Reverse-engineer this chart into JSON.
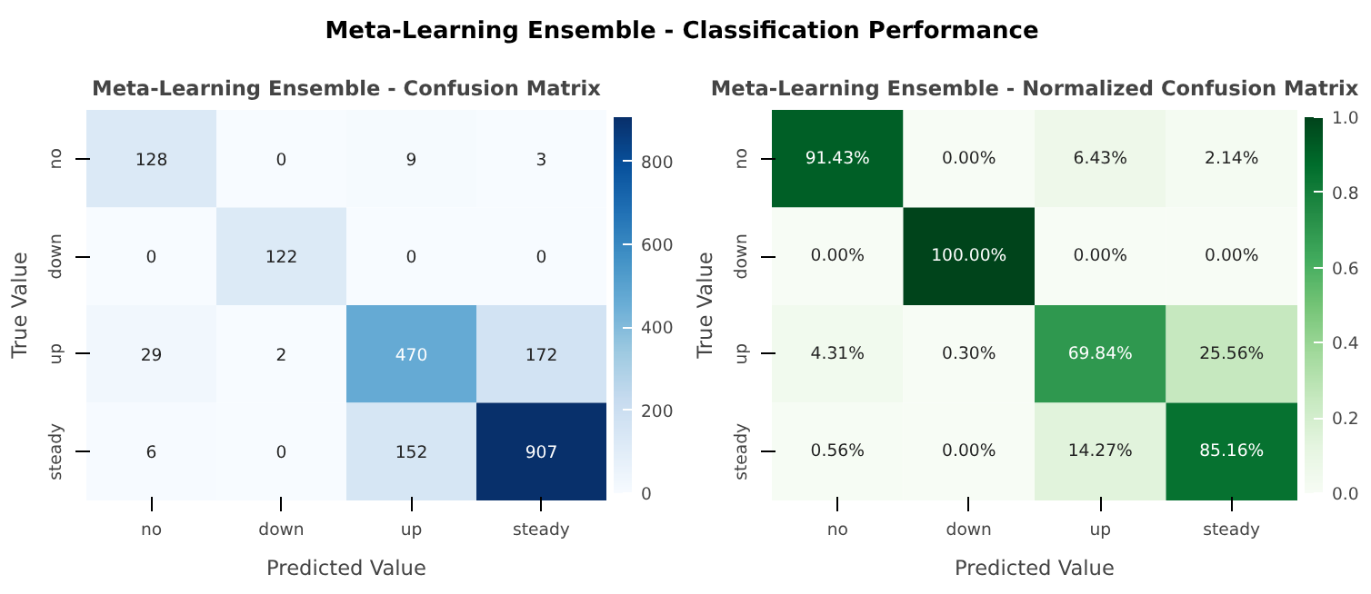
{
  "chart_data": [
    {
      "type": "heatmap",
      "title": "Meta-Learning Ensemble - Confusion Matrix",
      "annotations": [
        "Meta-Learning Ensemble - Classification Performance"
      ],
      "xlabel": "Predicted Value",
      "ylabel": "True Value",
      "categories": [
        "no",
        "down",
        "up",
        "steady"
      ],
      "y_categories": [
        "no",
        "down",
        "up",
        "steady"
      ],
      "cells": [
        [
          128,
          0,
          9,
          3
        ],
        [
          0,
          122,
          0,
          0
        ],
        [
          29,
          2,
          470,
          172
        ],
        [
          6,
          0,
          152,
          907
        ]
      ],
      "clim": [
        0,
        907
      ],
      "cticks": [
        0,
        200,
        400,
        600,
        800
      ],
      "data_labels": true
    },
    {
      "type": "heatmap",
      "title": "Meta-Learning Ensemble - Normalized Confusion Matrix",
      "xlabel": "Predicted Value",
      "ylabel": "True Value",
      "categories": [
        "no",
        "down",
        "up",
        "steady"
      ],
      "y_categories": [
        "no",
        "down",
        "up",
        "steady"
      ],
      "cells": [
        [
          0.9143,
          0.0,
          0.0643,
          0.0214
        ],
        [
          0.0,
          1.0,
          0.0,
          0.0
        ],
        [
          0.0431,
          0.003,
          0.6984,
          0.2556
        ],
        [
          0.0056,
          0.0,
          0.1427,
          0.8516
        ]
      ],
      "cell_labels": [
        [
          "91.43%",
          "0.00%",
          "6.43%",
          "2.14%"
        ],
        [
          "0.00%",
          "100.00%",
          "0.00%",
          "0.00%"
        ],
        [
          "4.31%",
          "0.30%",
          "69.84%",
          "25.56%"
        ],
        [
          "0.56%",
          "0.00%",
          "14.27%",
          "85.16%"
        ]
      ],
      "clim": [
        0,
        1
      ],
      "cticks": [
        {
          "value": 0,
          "label": "0.0"
        },
        {
          "value": 0.2,
          "label": "0.2"
        },
        {
          "value": 0.4,
          "label": "0.4"
        },
        {
          "value": 0.6,
          "label": "0.6"
        },
        {
          "value": 0.8,
          "label": "0.8"
        },
        {
          "value": 1,
          "label": "1.0"
        }
      ]
    }
  ]
}
